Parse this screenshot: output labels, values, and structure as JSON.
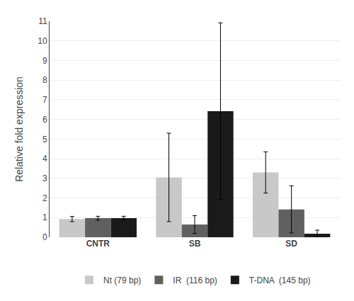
{
  "chart_data": {
    "type": "bar",
    "categories": [
      "CNTR",
      "SB",
      "SD"
    ],
    "series": [
      {
        "name": "Nt (79 bp)",
        "color": "#c8c8c8",
        "values": [
          0.93,
          3.05,
          3.3
        ],
        "errors": [
          0.13,
          2.25,
          1.05
        ]
      },
      {
        "name": "IR  (116 bp)",
        "color": "#606060",
        "values": [
          0.97,
          0.65,
          1.42
        ],
        "errors": [
          0.1,
          0.45,
          1.2
        ]
      },
      {
        "name": "T-DNA  (145 bp)",
        "color": "#1a1a1a",
        "values": [
          0.97,
          6.42,
          0.18
        ],
        "errors": [
          0.1,
          4.5,
          0.18
        ]
      }
    ],
    "ylabel": "Relative fold expression",
    "ylim": [
      0,
      11
    ],
    "yticks": [
      0,
      1,
      2,
      3,
      4,
      5,
      6,
      7,
      8,
      9,
      10,
      11
    ],
    "grid": true,
    "legend": "bottom"
  }
}
